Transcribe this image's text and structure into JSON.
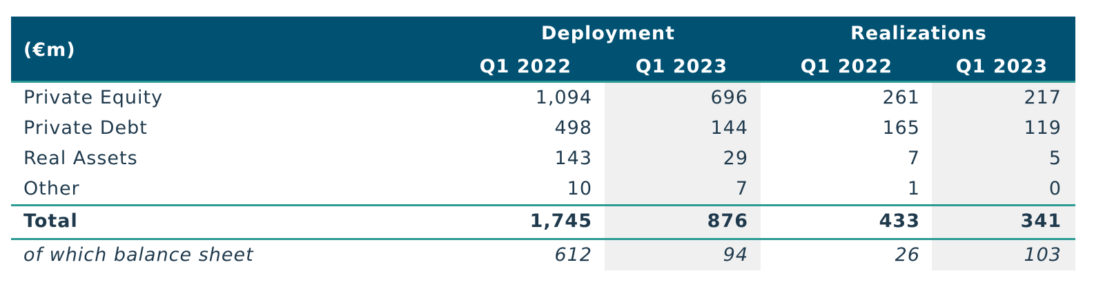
{
  "header": {
    "unit": "(€m)",
    "groups": [
      "Deployment",
      "Realizations"
    ],
    "periods": [
      "Q1 2022",
      "Q1 2023",
      "Q1 2022",
      "Q1 2023"
    ]
  },
  "rows": [
    {
      "label": "Private Equity",
      "values": [
        "1,094",
        "696",
        "261",
        "217"
      ]
    },
    {
      "label": "Private Debt",
      "values": [
        "498",
        "144",
        "165",
        "119"
      ]
    },
    {
      "label": "Real Assets",
      "values": [
        "143",
        "29",
        "7",
        "5"
      ]
    },
    {
      "label": "Other",
      "values": [
        "10",
        "7",
        "1",
        "0"
      ]
    }
  ],
  "total": {
    "label": "Total",
    "values": [
      "1,745",
      "876",
      "433",
      "341"
    ]
  },
  "balance_sheet": {
    "label": "of which balance sheet",
    "values": [
      "612",
      "94",
      "26",
      "103"
    ]
  },
  "colors": {
    "header_bg": "#005172",
    "rule": "#2a9a93",
    "shade": "#f0f0f0",
    "text": "#1f3a4d"
  }
}
